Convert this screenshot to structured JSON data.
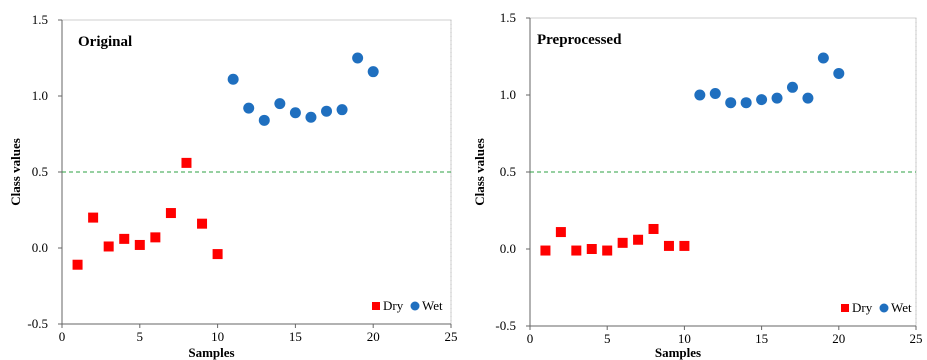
{
  "chart_data": [
    {
      "type": "scatter",
      "title": "Original",
      "xlabel": "Samples",
      "ylabel": "Class values",
      "xlim": [
        0,
        25
      ],
      "ylim": [
        -0.5,
        1.5
      ],
      "x_ticks": [
        "0",
        "5",
        "10",
        "15",
        "20",
        "25"
      ],
      "y_ticks": [
        "-0.5",
        "0.0",
        "0.5",
        "1.0",
        "1.5"
      ],
      "threshold": 0.5,
      "legend_position": "bottom-right",
      "series": [
        {
          "name": "Dry",
          "marker": "square",
          "color": "#ff0000",
          "x": [
            1,
            2,
            3,
            4,
            5,
            6,
            7,
            8,
            9,
            10
          ],
          "y": [
            -0.11,
            0.2,
            0.01,
            0.06,
            0.02,
            0.07,
            0.23,
            0.56,
            0.16,
            -0.04
          ]
        },
        {
          "name": "Wet",
          "marker": "circle",
          "color": "#1f6fbf",
          "x": [
            11,
            12,
            13,
            14,
            15,
            16,
            17,
            18,
            19,
            20
          ],
          "y": [
            1.11,
            0.92,
            0.84,
            0.95,
            0.89,
            0.86,
            0.9,
            0.91,
            1.25,
            1.16
          ]
        }
      ]
    },
    {
      "type": "scatter",
      "title": "Preprocessed",
      "xlabel": "Samples",
      "ylabel": "Class values",
      "xlim": [
        0,
        25
      ],
      "ylim": [
        -0.5,
        1.5
      ],
      "x_ticks": [
        "0",
        "5",
        "10",
        "15",
        "20",
        "25"
      ],
      "y_ticks": [
        "-0.5",
        "0.0",
        "0.5",
        "1.0",
        "1.5"
      ],
      "threshold": 0.5,
      "legend_position": "bottom-right",
      "series": [
        {
          "name": "Dry",
          "marker": "square",
          "color": "#ff0000",
          "x": [
            1,
            2,
            3,
            4,
            5,
            6,
            7,
            8,
            9,
            10
          ],
          "y": [
            -0.01,
            0.11,
            -0.01,
            0.0,
            -0.01,
            0.04,
            0.06,
            0.13,
            0.02,
            0.02
          ]
        },
        {
          "name": "Wet",
          "marker": "circle",
          "color": "#1f6fbf",
          "x": [
            11,
            12,
            13,
            14,
            15,
            16,
            17,
            18,
            19,
            20
          ],
          "y": [
            1.0,
            1.01,
            0.95,
            0.95,
            0.97,
            0.98,
            1.05,
            0.98,
            1.24,
            1.14
          ]
        }
      ]
    }
  ]
}
